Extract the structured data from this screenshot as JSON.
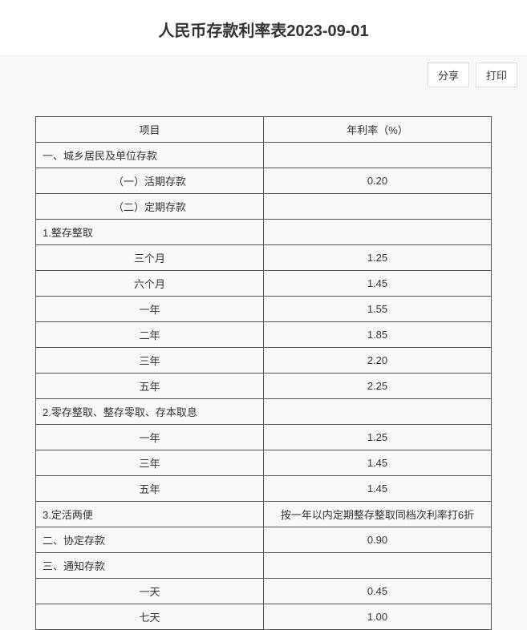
{
  "title": "人民币存款利率表2023-09-01",
  "actions": {
    "share": "分享",
    "print": "打印"
  },
  "table": {
    "headers": {
      "item": "项目",
      "rate": "年利率（%）"
    },
    "rows": [
      {
        "item": "一、城乡居民及单位存款",
        "rate": "",
        "align": "left"
      },
      {
        "item": "（一）活期存款",
        "rate": "0.20",
        "align": "center"
      },
      {
        "item": "（二）定期存款",
        "rate": "",
        "align": "center"
      },
      {
        "item": "1.整存整取",
        "rate": "",
        "align": "left"
      },
      {
        "item": "三个月",
        "rate": "1.25",
        "align": "center"
      },
      {
        "item": "六个月",
        "rate": "1.45",
        "align": "center"
      },
      {
        "item": "一年",
        "rate": "1.55",
        "align": "center"
      },
      {
        "item": "二年",
        "rate": "1.85",
        "align": "center"
      },
      {
        "item": "三年",
        "rate": "2.20",
        "align": "center"
      },
      {
        "item": "五年",
        "rate": "2.25",
        "align": "center"
      },
      {
        "item": "2.零存整取、整存零取、存本取息",
        "rate": "",
        "align": "left"
      },
      {
        "item": "一年",
        "rate": "1.25",
        "align": "center"
      },
      {
        "item": "三年",
        "rate": "1.45",
        "align": "center"
      },
      {
        "item": "五年",
        "rate": "1.45",
        "align": "center"
      },
      {
        "item": "3.定活两便",
        "rate": "按一年以内定期整存整取同档次利率打6折",
        "align": "left"
      },
      {
        "item": "二、协定存款",
        "rate": "0.90",
        "align": "left"
      },
      {
        "item": "三、通知存款",
        "rate": "",
        "align": "left"
      },
      {
        "item": "一天",
        "rate": "0.45",
        "align": "center"
      },
      {
        "item": "七天",
        "rate": "1.00",
        "align": "center"
      }
    ]
  },
  "styles": {
    "background_color": "#f7f8f8",
    "border_color": "#555555",
    "text_color": "#333333",
    "title_fontsize": 20,
    "cell_fontsize": 13
  }
}
